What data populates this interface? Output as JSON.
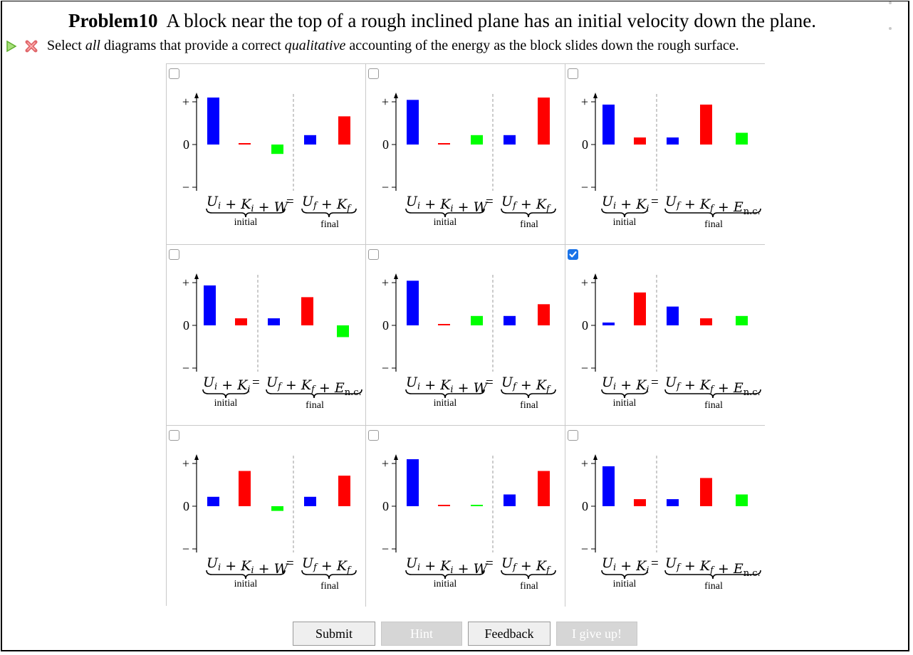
{
  "problem": {
    "number_label": "Problem10",
    "statement": "A block near the top of a rough inclined plane has an initial velocity down the plane.",
    "instruction_parts": [
      "Select ",
      "all",
      " diagrams that provide a correct ",
      "qualitative",
      " accounting of the energy as the block slides down the rough surface."
    ]
  },
  "icons": {
    "play": "play-triangle-icon",
    "status": "red-x-icon"
  },
  "colors": {
    "blue": "#0000ff",
    "red": "#ff0000",
    "green": "#00ff00"
  },
  "labels": {
    "plus": "+",
    "zero": "0",
    "minus": "−",
    "initial": "initial",
    "final": "final",
    "eq_w_left": "U_i + K_i + W",
    "eq_w_right": "U_f + K_f",
    "eq_nc_left": "U_i + K_i",
    "eq_nc_right": "U_f + K_f + E_n.c."
  },
  "diagrams": [
    {
      "type": "W",
      "checked": false,
      "bars": [
        {
          "c": "blue",
          "v": 1.0
        },
        {
          "c": "red",
          "v": 0.03
        },
        {
          "c": "green",
          "v": -0.2
        }
      ],
      "final": [
        {
          "c": "blue",
          "v": 0.2
        },
        {
          "c": "red",
          "v": 0.6
        }
      ]
    },
    {
      "type": "W",
      "checked": false,
      "bars": [
        {
          "c": "blue",
          "v": 0.95
        },
        {
          "c": "red",
          "v": 0.03
        },
        {
          "c": "green",
          "v": 0.2
        }
      ],
      "final": [
        {
          "c": "blue",
          "v": 0.2
        },
        {
          "c": "red",
          "v": 1.0
        }
      ]
    },
    {
      "type": "NC",
      "checked": false,
      "bars": [
        {
          "c": "blue",
          "v": 0.85
        },
        {
          "c": "red",
          "v": 0.15
        }
      ],
      "final": [
        {
          "c": "blue",
          "v": 0.15
        },
        {
          "c": "red",
          "v": 0.85
        },
        {
          "c": "green",
          "v": 0.25
        }
      ]
    },
    {
      "type": "NC",
      "checked": false,
      "bars": [
        {
          "c": "blue",
          "v": 0.85
        },
        {
          "c": "red",
          "v": 0.15
        }
      ],
      "final": [
        {
          "c": "blue",
          "v": 0.15
        },
        {
          "c": "red",
          "v": 0.6
        },
        {
          "c": "green",
          "v": -0.25
        }
      ]
    },
    {
      "type": "W",
      "checked": false,
      "bars": [
        {
          "c": "blue",
          "v": 0.95
        },
        {
          "c": "red",
          "v": 0.03
        },
        {
          "c": "green",
          "v": 0.2
        }
      ],
      "final": [
        {
          "c": "blue",
          "v": 0.2
        },
        {
          "c": "red",
          "v": 0.45
        }
      ]
    },
    {
      "type": "NC",
      "checked": true,
      "bars": [
        {
          "c": "blue",
          "v": 0.06
        },
        {
          "c": "red",
          "v": 0.7
        }
      ],
      "final": [
        {
          "c": "blue",
          "v": 0.4
        },
        {
          "c": "red",
          "v": 0.15
        },
        {
          "c": "green",
          "v": 0.2
        }
      ]
    },
    {
      "type": "W",
      "checked": false,
      "bars": [
        {
          "c": "blue",
          "v": 0.2
        },
        {
          "c": "red",
          "v": 0.75
        },
        {
          "c": "green",
          "v": -0.1
        }
      ],
      "final": [
        {
          "c": "blue",
          "v": 0.2
        },
        {
          "c": "red",
          "v": 0.65
        }
      ]
    },
    {
      "type": "W",
      "checked": false,
      "bars": [
        {
          "c": "blue",
          "v": 1.0
        },
        {
          "c": "red",
          "v": 0.01
        },
        {
          "c": "green",
          "v": 0.01
        }
      ],
      "final": [
        {
          "c": "blue",
          "v": 0.25
        },
        {
          "c": "red",
          "v": 0.75
        }
      ]
    },
    {
      "type": "NC",
      "checked": false,
      "bars": [
        {
          "c": "blue",
          "v": 0.85
        },
        {
          "c": "red",
          "v": 0.15
        }
      ],
      "final": [
        {
          "c": "blue",
          "v": 0.15
        },
        {
          "c": "red",
          "v": 0.6
        },
        {
          "c": "green",
          "v": 0.25
        }
      ]
    }
  ],
  "buttons": [
    {
      "label": "Submit",
      "enabled": true
    },
    {
      "label": "Hint",
      "enabled": false
    },
    {
      "label": "Feedback",
      "enabled": true
    },
    {
      "label": "I give up!",
      "enabled": false
    }
  ]
}
